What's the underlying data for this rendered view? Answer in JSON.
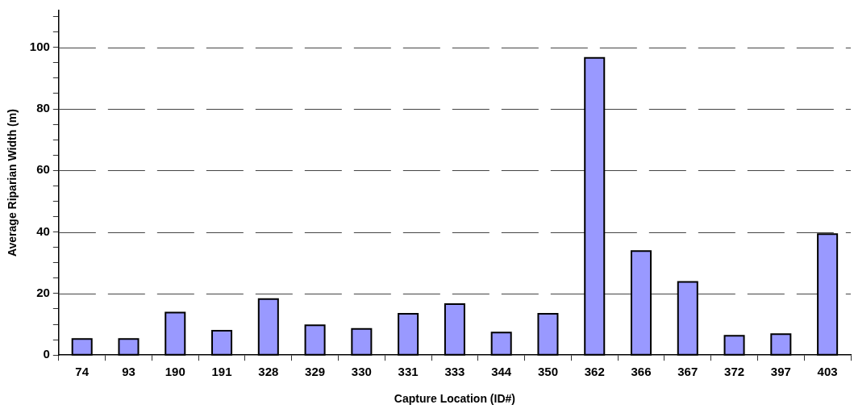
{
  "chart_data": {
    "type": "bar",
    "xlabel": "Capture Location (ID#)",
    "ylabel": "Average Riparian Width (m)",
    "categories": [
      "74",
      "93",
      "190",
      "191",
      "328",
      "329",
      "330",
      "331",
      "333",
      "344",
      "350",
      "362",
      "366",
      "367",
      "372",
      "397",
      "403"
    ],
    "values": [
      5.2,
      5.2,
      13.8,
      7.9,
      18.2,
      9.7,
      8.5,
      13.4,
      16.6,
      7.3,
      13.4,
      96.6,
      33.8,
      23.8,
      6.3,
      6.8,
      39.3
    ],
    "color": "#9999ff",
    "ylim": [
      0,
      112
    ],
    "yticks": [
      0,
      {
        "value": 5,
        "label": null
      },
      {
        "value": 10,
        "label": null
      },
      {
        "value": 15,
        "label": null
      },
      20,
      {
        "value": 25,
        "label": null
      },
      {
        "value": 30,
        "label": null
      },
      {
        "value": 35,
        "label": null
      },
      40,
      {
        "value": 45,
        "label": null
      },
      {
        "value": 50,
        "label": null
      },
      {
        "value": 55,
        "label": null
      },
      60,
      {
        "value": 65,
        "label": null
      },
      {
        "value": 70,
        "label": null
      },
      {
        "value": 75,
        "label": null
      },
      80,
      {
        "value": 85,
        "label": null
      },
      {
        "value": 90,
        "label": null
      },
      {
        "value": 95,
        "label": null
      },
      100,
      {
        "value": 105,
        "label": null
      },
      {
        "value": 110,
        "label": null
      }
    ],
    "grid": "y",
    "legend": false
  }
}
